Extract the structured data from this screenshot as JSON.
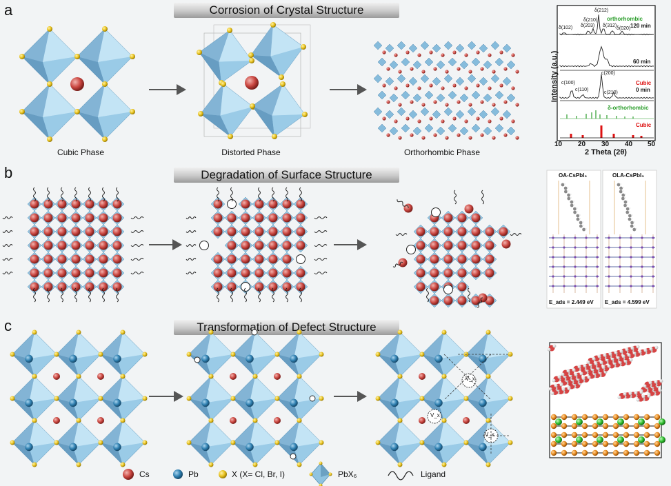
{
  "panels": {
    "a": {
      "letter": "a",
      "title": "Corrosion of Crystal Structure",
      "captions": [
        "Cubic Phase",
        "Distorted Phase",
        "Orthorhombic Phase"
      ]
    },
    "b": {
      "letter": "b",
      "title": "Degradation of Surface Structure"
    },
    "c": {
      "letter": "c",
      "title": "Transformation of Defect Structure"
    }
  },
  "xrd": {
    "ylabel": "Intensity (a.u.)",
    "xlabel": "2 Theta (2θ)",
    "xticks": [
      "10",
      "20",
      "30",
      "40",
      "50"
    ],
    "traces": [
      {
        "label": "orthorhombic",
        "label2": "120 min",
        "color": "#2a9d2a"
      },
      {
        "label": "60 min"
      },
      {
        "label": "Cubic",
        "label2": "0 min",
        "color": "#d11"
      },
      {
        "label": "δ-orthorhombic",
        "color": "#2a9d2a"
      },
      {
        "label": "Cubic",
        "color": "#d11"
      }
    ],
    "peak_labels_top": [
      "δ(102)",
      "δ(210)",
      "δ(203)",
      "δ(212)",
      "δ(312)",
      "δ(020)"
    ],
    "peak_labels_cubic": [
      "c(100)",
      "c(110)",
      "c(200)",
      "c(210)"
    ]
  },
  "dft": {
    "left_title": "OA-CsPbI₃",
    "right_title": "OLA-CsPbI₃",
    "left_energy": "E_ads = 2.449 eV",
    "right_energy": "E_ads = 4.599 eV"
  },
  "defects": {
    "label": "V_x"
  },
  "legend": {
    "cs": "Cs",
    "pb": "Pb",
    "x": "X (X= Cl, Br, I)",
    "pbx6": "PbX₆",
    "ligand": "Ligand",
    "colors": {
      "cs": "#c9453f",
      "pb": "#2e7fb0",
      "x": "#e8c21e",
      "octa": "#8fc3e0"
    }
  }
}
